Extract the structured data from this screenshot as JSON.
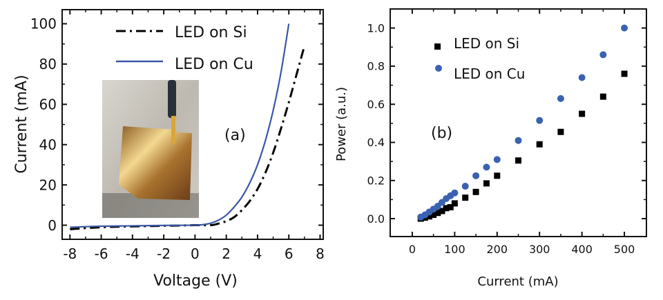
{
  "chart_data": [
    {
      "type": "line",
      "panel_label": "(a)",
      "xlabel": "Voltage (V)",
      "ylabel": "Current (mA)",
      "xlim": [
        -8.5,
        8.2
      ],
      "ylim": [
        -7,
        107
      ],
      "xticks": [
        "-8",
        "-6",
        "-4",
        "-2",
        "0",
        "2",
        "4",
        "6",
        "8"
      ],
      "yticks": [
        "0",
        "20",
        "40",
        "60",
        "80",
        "100"
      ],
      "grid": false,
      "legend_placement": "top",
      "inset": "photo of flexible LED array on copper held by gloved fingers with probe",
      "series": [
        {
          "name": "LED on Si",
          "style": "dash-dot",
          "color": "#000000",
          "x": [
            -8,
            -6,
            -4,
            -2,
            0,
            1,
            1.5,
            2,
            2.5,
            3,
            3.5,
            4,
            4.5,
            5,
            5.5,
            6,
            6.5,
            7
          ],
          "y": [
            -2,
            -1,
            -0.6,
            -0.3,
            0,
            0,
            0.8,
            2,
            4,
            7.5,
            12,
            18,
            26,
            36,
            48,
            61,
            75,
            89
          ]
        },
        {
          "name": "LED on Cu",
          "style": "solid",
          "color": "#3a57a5",
          "x": [
            -8,
            -6,
            -4,
            -2,
            0,
            0.5,
            1,
            1.5,
            2,
            2.5,
            3,
            3.5,
            4,
            4.5,
            5,
            5.5,
            6
          ],
          "y": [
            -1,
            -0.5,
            -0.3,
            -0.1,
            0,
            0.3,
            1,
            2.5,
            5,
            9,
            14,
            21,
            30,
            42,
            57,
            76,
            100
          ]
        }
      ]
    },
    {
      "type": "scatter",
      "panel_label": "(b)",
      "xlabel": "Current (mA)",
      "ylabel": "Power (a.u.)",
      "xlim": [
        -52,
        552
      ],
      "ylim": [
        -0.094,
        1.1
      ],
      "xticks": [
        "0",
        "100",
        "200",
        "300",
        "400",
        "500"
      ],
      "yticks": [
        "0.0",
        "0.2",
        "0.4",
        "0.6",
        "0.8",
        "1.0"
      ],
      "grid": false,
      "legend_placement": "top-left",
      "series": [
        {
          "name": "LED on Si",
          "marker": "square",
          "color": "#000000",
          "x": [
            20,
            30,
            40,
            50,
            60,
            70,
            80,
            90,
            100,
            125,
            150,
            175,
            200,
            250,
            300,
            350,
            400,
            450,
            500
          ],
          "y": [
            0.0,
            0.005,
            0.012,
            0.02,
            0.03,
            0.04,
            0.055,
            0.06,
            0.08,
            0.11,
            0.14,
            0.185,
            0.225,
            0.305,
            0.39,
            0.455,
            0.55,
            0.64,
            0.76
          ]
        },
        {
          "name": "LED on Cu",
          "marker": "circle",
          "color": "#3a62b0",
          "x": [
            20,
            30,
            40,
            50,
            60,
            70,
            80,
            90,
            100,
            125,
            150,
            175,
            200,
            250,
            300,
            350,
            400,
            450,
            500
          ],
          "y": [
            0.008,
            0.02,
            0.035,
            0.05,
            0.065,
            0.085,
            0.105,
            0.12,
            0.135,
            0.17,
            0.225,
            0.27,
            0.31,
            0.41,
            0.515,
            0.63,
            0.74,
            0.86,
            1.0
          ]
        }
      ]
    }
  ]
}
